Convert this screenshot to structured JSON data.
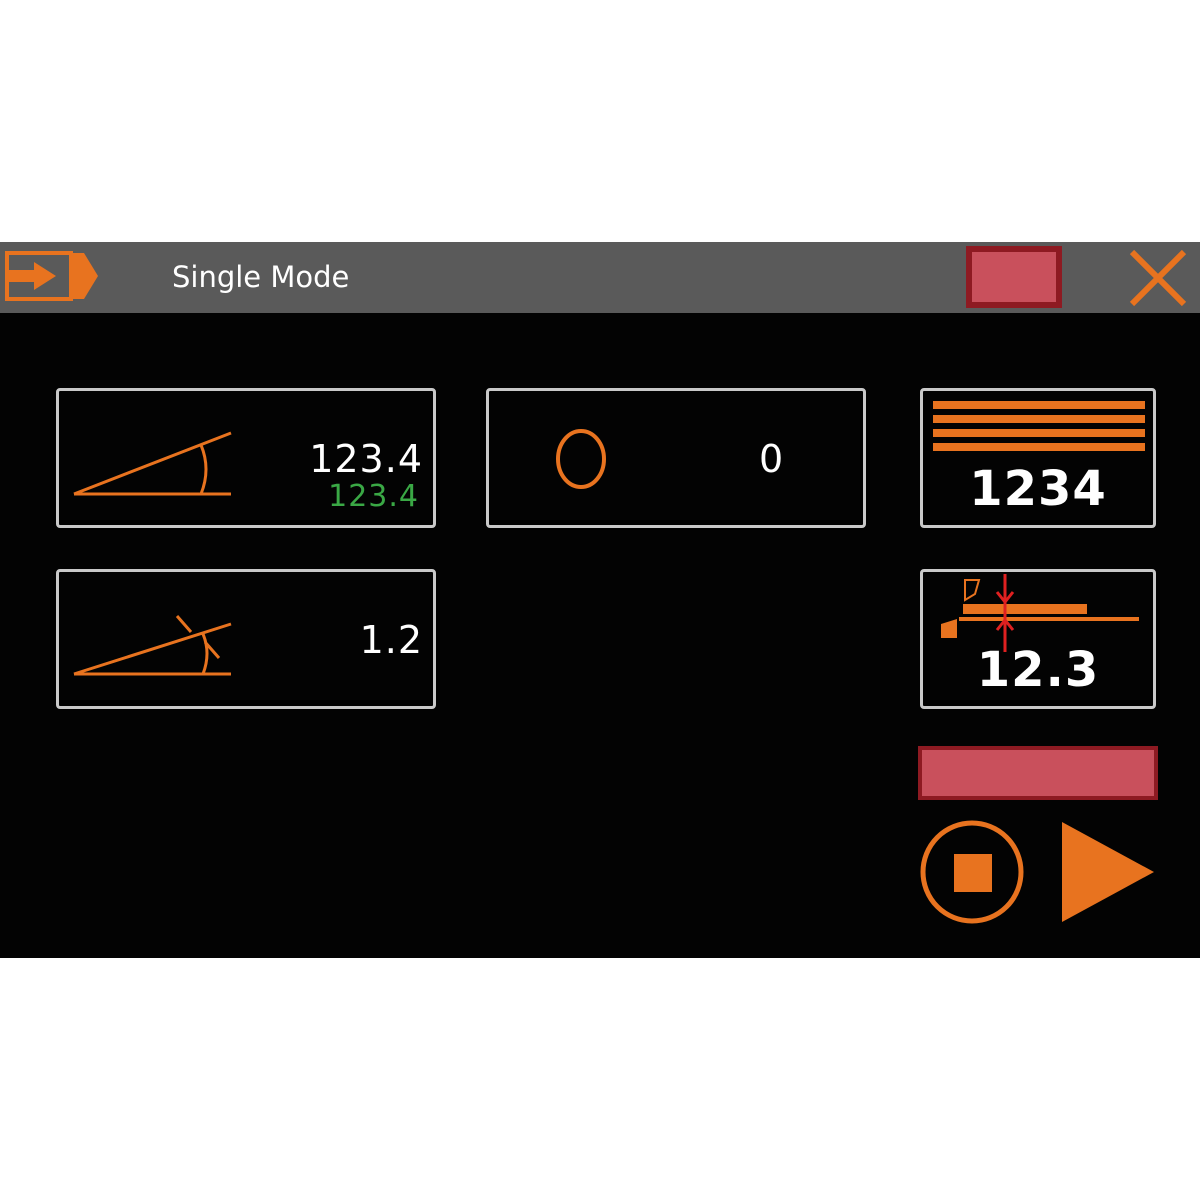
{
  "header": {
    "title": "Single Mode",
    "exit_icon": "exit-arrow-icon",
    "close_icon": "close-x-icon",
    "status_color": "#c9505c"
  },
  "angle_panel": {
    "icon": "angle-icon",
    "value": "123.4",
    "actual_value": "123.4",
    "actual_color": "#3aa845"
  },
  "correction_panel": {
    "icon": "angle-correction-icon",
    "value": "1.2"
  },
  "counter_panel": {
    "icon": "circle-icon",
    "value": "0"
  },
  "sheets_panel": {
    "icon": "stack-lines-icon",
    "value": "1234"
  },
  "thickness_panel": {
    "icon": "sheet-thickness-icon",
    "value": "12.3"
  },
  "controls": {
    "stop_icon": "stop-icon",
    "play_icon": "play-icon",
    "status_bar_color": "#c9505c"
  },
  "colors": {
    "accent": "#e8731f"
  }
}
